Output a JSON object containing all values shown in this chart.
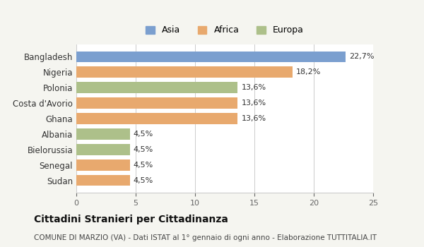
{
  "categories": [
    "Sudan",
    "Senegal",
    "Bielorussia",
    "Albania",
    "Ghana",
    "Costa d'Avorio",
    "Polonia",
    "Nigeria",
    "Bangladesh"
  ],
  "values": [
    4.5,
    4.5,
    4.5,
    4.5,
    13.6,
    13.6,
    13.6,
    18.2,
    22.7
  ],
  "labels": [
    "4,5%",
    "4,5%",
    "4,5%",
    "4,5%",
    "13,6%",
    "13,6%",
    "13,6%",
    "18,2%",
    "22,7%"
  ],
  "colors": [
    "#e8a96e",
    "#e8a96e",
    "#adc08a",
    "#adc08a",
    "#e8a96e",
    "#e8a96e",
    "#adc08a",
    "#e8a96e",
    "#7b9fcf"
  ],
  "legend": [
    {
      "label": "Asia",
      "color": "#7b9fcf"
    },
    {
      "label": "Africa",
      "color": "#e8a96e"
    },
    {
      "label": "Europa",
      "color": "#adc08a"
    }
  ],
  "xlim": [
    0,
    25
  ],
  "xticks": [
    0,
    5,
    10,
    15,
    20,
    25
  ],
  "title": "Cittadini Stranieri per Cittadinanza",
  "subtitle": "COMUNE DI MARZIO (VA) - Dati ISTAT al 1° gennaio di ogni anno - Elaborazione TUTTITALIA.IT",
  "background_color": "#f5f5f0",
  "bar_background": "#ffffff"
}
